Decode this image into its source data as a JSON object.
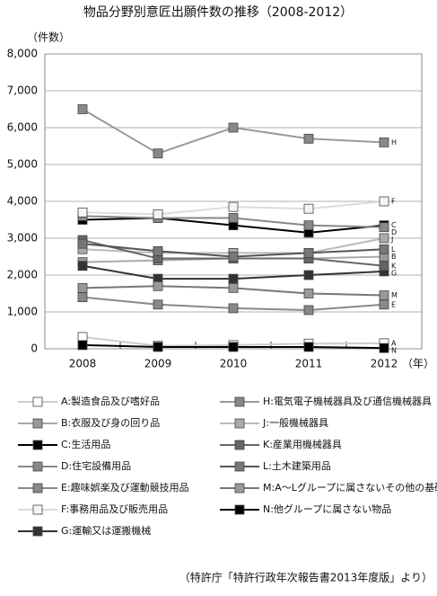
{
  "chart_data": {
    "type": "line",
    "title": "物品分野別意匠出願件数の推移（2008-2012）",
    "y_label": "（件数）",
    "x_label": "（年）",
    "source": "（特許庁「特許行政年次報告書2013年度版」より）",
    "categories": [
      "2008",
      "2009",
      "2010",
      "2011",
      "2012"
    ],
    "ylim": [
      0,
      8000
    ],
    "yticks": [
      0,
      {
        "value": 1000,
        "label": "1,000"
      },
      {
        "value": 2000,
        "label": "2,000"
      },
      {
        "value": 3000,
        "label": "3,000"
      },
      {
        "value": 4000,
        "label": "4,000"
      },
      {
        "value": 5000,
        "label": "5,000"
      },
      {
        "value": 6000,
        "label": "6,000"
      },
      {
        "value": 7000,
        "label": "7,000"
      },
      {
        "value": 8000,
        "label": "8,000"
      }
    ],
    "grid": true,
    "series": [
      {
        "name": "A:製造食品及び嗜好品",
        "label": "A",
        "color": "#cccccc",
        "marker": "#ffffff",
        "values": [
          320,
          80,
          100,
          140,
          150
        ]
      },
      {
        "name": "B:衣服及び身の回り品",
        "label": "B",
        "color": "#aaaaaa",
        "marker": "#999999",
        "values": [
          2350,
          2400,
          2450,
          2450,
          2500
        ]
      },
      {
        "name": "C:生活用品",
        "label": "C",
        "color": "#000000",
        "marker": "#000000",
        "values": [
          3500,
          3550,
          3350,
          3150,
          3350
        ]
      },
      {
        "name": "D:住宅設備用品",
        "label": "D",
        "color": "#888888",
        "marker": "#888888",
        "values": [
          3600,
          3550,
          3550,
          3350,
          3300
        ]
      },
      {
        "name": "E:趣味娯楽及び運動競技用品",
        "label": "E",
        "color": "#888888",
        "marker": "#888888",
        "values": [
          1400,
          1200,
          1100,
          1050,
          1200
        ]
      },
      {
        "name": "F:事務用品及び販売用品",
        "label": "F",
        "color": "#dddddd",
        "marker": "#f4f4f4",
        "values": [
          3700,
          3650,
          3850,
          3800,
          4000
        ]
      },
      {
        "name": "G:運輸又は運搬機械",
        "label": "G",
        "color": "#333333",
        "marker": "#333333",
        "values": [
          2250,
          1900,
          1900,
          2000,
          2100
        ]
      },
      {
        "name": "H:電気電子機械器具及び通信機械器具",
        "label": "H",
        "color": "#999999",
        "marker": "#888888",
        "values": [
          6500,
          5300,
          6000,
          5700,
          5600
        ]
      },
      {
        "name": "J:一般機械器具",
        "label": "J",
        "color": "#bbbbbb",
        "marker": "#aaaaaa",
        "values": [
          2700,
          2600,
          2600,
          2600,
          3000
        ]
      },
      {
        "name": "K:産業用機械器具",
        "label": "K",
        "color": "#666666",
        "marker": "#666666",
        "values": [
          2950,
          2450,
          2450,
          2450,
          2250
        ]
      },
      {
        "name": "L:土木建築用品",
        "label": "L",
        "color": "#555555",
        "marker": "#777777",
        "values": [
          2850,
          2650,
          2500,
          2600,
          2700
        ]
      },
      {
        "name": "M:A～Lグループに属さないその他の基礎製品",
        "label": "M",
        "color": "#777777",
        "marker": "#999999",
        "values": [
          1650,
          1700,
          1650,
          1500,
          1450
        ]
      },
      {
        "name": "N:他グループに属さない物品",
        "label": "N",
        "color": "#000000",
        "marker": "#000000",
        "values": [
          100,
          50,
          50,
          50,
          20
        ]
      }
    ]
  }
}
